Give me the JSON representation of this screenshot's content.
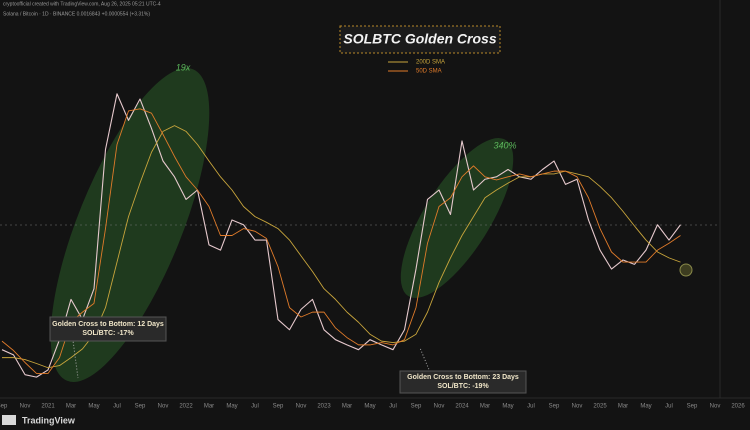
{
  "header": {
    "credit": "cryptoofficial created with TradingView.com, Aug 26, 2025 05:21 UTC-4",
    "symbol": "Solana / Bitcoin · 1D · BINANCE  0.0016843 +0.0000554 (+3.31%)"
  },
  "footer": {
    "brand": "TradingView"
  },
  "chart_data": {
    "type": "line",
    "title": "SOLBTC Golden Cross",
    "log_scale": true,
    "ylim": [
      3.2e-05,
      0.012
    ],
    "categories": [
      "Sep",
      null,
      "Nov",
      null,
      "2021",
      null,
      "Mar",
      null,
      "May",
      null,
      "Jul",
      null,
      "Sep",
      null,
      "Nov",
      null,
      "2022",
      null,
      "Mar",
      null,
      "May",
      null,
      "Jul",
      null,
      "Sep",
      null,
      "Nov",
      null,
      "2023",
      null,
      "Mar",
      null,
      "May",
      null,
      "Jul",
      null,
      "Sep",
      null,
      "Nov",
      null,
      "2024",
      null,
      "Mar",
      null,
      "May",
      null,
      "Jul",
      null,
      "Sep",
      null,
      "Nov",
      null,
      "2025",
      null,
      "Mar",
      null,
      "May",
      null,
      "Jul",
      null,
      "Sep",
      null,
      "Nov",
      null,
      "2026"
    ],
    "series": [
      {
        "color": "#e6c9cd",
        "values": [
          7.9e-05,
          7.3e-05,
          5.4e-05,
          5.2e-05,
          5.8e-05,
          9.2e-05,
          0.00017,
          0.000125,
          0.0002,
          0.00167,
          0.0039,
          0.0026,
          0.0036,
          0.0023,
          0.0014,
          0.0011,
          0.00078,
          0.0009,
          0.00039,
          0.00036,
          0.00057,
          0.00053,
          0.00042,
          0.00042,
          0.000125,
          0.000107,
          0.000146,
          0.00017,
          0.000107,
          9.2e-05,
          8.5e-05,
          7.9e-05,
          9.2e-05,
          8.5e-05,
          7.9e-05,
          0.000107,
          0.00027,
          0.00078,
          0.0009,
          0.00062,
          0.0019,
          0.0009,
          0.00106,
          0.0011,
          0.00123,
          0.0011,
          0.00106,
          0.00123,
          0.0014,
          0.00098,
          0.00106,
          0.00057,
          0.00036,
          0.00027,
          0.00031,
          0.00029,
          0.00036,
          0.00053,
          0.00042,
          0.00053,
          null,
          null,
          null,
          null,
          null
        ]
      },
      {
        "name": "200D SMA",
        "color": "#c8a53c",
        "values": [
          7e-05,
          7e-05,
          6.8e-05,
          6.4e-05,
          6e-05,
          6.2e-05,
          7e-05,
          8e-05,
          0.0001,
          0.00015,
          0.0003,
          0.0006,
          0.001,
          0.0016,
          0.0022,
          0.0024,
          0.0022,
          0.0018,
          0.0014,
          0.0011,
          0.0009,
          0.0007,
          0.0006,
          0.00055,
          0.0005,
          0.00042,
          0.00033,
          0.00026,
          0.0002,
          0.00017,
          0.00014,
          0.00012,
          0.0001,
          9e-05,
          8.8e-05,
          9e-05,
          0.0001,
          0.00014,
          0.00022,
          0.00032,
          0.00045,
          0.0006,
          0.0008,
          0.0009,
          0.001,
          0.0011,
          0.0011,
          0.00115,
          0.00115,
          0.0012,
          0.00115,
          0.0011,
          0.00095,
          0.0008,
          0.00065,
          0.00052,
          0.00042,
          0.00035,
          0.00032,
          0.0003,
          null,
          null,
          null,
          null,
          null
        ]
      },
      {
        "name": "50D SMA",
        "color": "#e07b2a",
        "values": [
          9e-05,
          7.8e-05,
          6.5e-05,
          5.5e-05,
          5.5e-05,
          7e-05,
          0.00012,
          0.00014,
          0.00016,
          0.0005,
          0.0018,
          0.003,
          0.0031,
          0.0029,
          0.0021,
          0.0015,
          0.0011,
          0.0009,
          0.0007,
          0.00045,
          0.00045,
          0.0005,
          0.00048,
          0.00043,
          0.00028,
          0.00015,
          0.00013,
          0.00014,
          0.00014,
          0.00011,
          9.5e-05,
          8.5e-05,
          8.5e-05,
          8.8e-05,
          8.5e-05,
          9.2e-05,
          0.00015,
          0.0004,
          0.0007,
          0.0008,
          0.0011,
          0.0013,
          0.0011,
          0.00105,
          0.0011,
          0.00115,
          0.0011,
          0.00115,
          0.0012,
          0.0012,
          0.0011,
          0.0008,
          0.0005,
          0.00035,
          0.0003,
          0.0003,
          0.0003,
          0.00036,
          0.0004,
          0.00045,
          null,
          null,
          null,
          null,
          null
        ]
      }
    ],
    "annotations": [
      {
        "text": "19x"
      },
      {
        "text": "340%"
      },
      {
        "lines": [
          "Golden Cross to Bottom: 12 Days",
          "SOL/BTC: -17%"
        ]
      },
      {
        "lines": [
          "Golden Cross to Bottom: 23 Days",
          "SOL/BTC: -19%"
        ]
      }
    ]
  }
}
